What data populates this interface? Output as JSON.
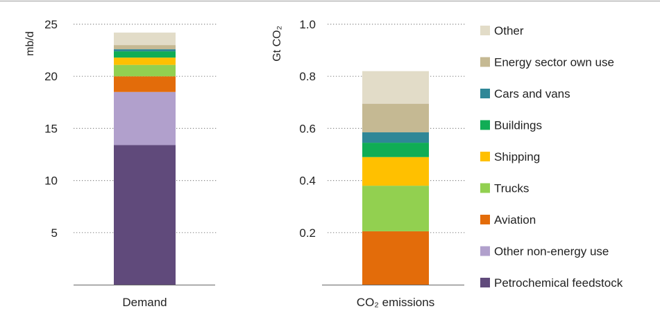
{
  "chart_data": [
    {
      "type": "bar",
      "stacked": true,
      "ylabel": "mb/d",
      "categories": [
        "Demand"
      ],
      "ylim": [
        0,
        25
      ],
      "yticks": [
        5,
        10,
        15,
        20,
        25
      ],
      "ytick_labels": [
        "5",
        "10",
        "15",
        "20",
        "25"
      ],
      "grid": "dotted-horizontal",
      "series": [
        {
          "name": "Petrochemical feedstock",
          "values": [
            13.4
          ]
        },
        {
          "name": "Other non-energy use",
          "values": [
            5.1
          ]
        },
        {
          "name": "Aviation",
          "values": [
            1.5
          ]
        },
        {
          "name": "Trucks",
          "values": [
            1.1
          ]
        },
        {
          "name": "Shipping",
          "values": [
            0.7
          ]
        },
        {
          "name": "Buildings",
          "values": [
            0.6
          ]
        },
        {
          "name": "Cars and vans",
          "values": [
            0.2
          ]
        },
        {
          "name": "Energy sector own use",
          "values": [
            0.4
          ]
        },
        {
          "name": "Other",
          "values": [
            1.2
          ]
        }
      ]
    },
    {
      "type": "bar",
      "stacked": true,
      "ylabel": "Gt CO₂",
      "categories": [
        "CO₂ emissions"
      ],
      "ylim": [
        0,
        1.0
      ],
      "yticks": [
        0.2,
        0.4,
        0.6,
        0.8,
        1.0
      ],
      "ytick_labels": [
        "0.2",
        "0.4",
        "0.6",
        "0.8",
        "1.0"
      ],
      "grid": "dotted-horizontal",
      "series": [
        {
          "name": "Petrochemical feedstock",
          "values": [
            0
          ]
        },
        {
          "name": "Other non-energy use",
          "values": [
            0
          ]
        },
        {
          "name": "Aviation",
          "values": [
            0.205
          ]
        },
        {
          "name": "Trucks",
          "values": [
            0.175
          ]
        },
        {
          "name": "Shipping",
          "values": [
            0.11
          ]
        },
        {
          "name": "Buildings",
          "values": [
            0.055
          ]
        },
        {
          "name": "Cars and vans",
          "values": [
            0.04
          ]
        },
        {
          "name": "Energy sector own use",
          "values": [
            0.11
          ]
        },
        {
          "name": "Other",
          "values": [
            0.125
          ]
        }
      ]
    }
  ],
  "legend": {
    "placement": "right",
    "items": [
      {
        "name": "Other",
        "color": "#e2dcc8"
      },
      {
        "name": "Energy sector own use",
        "color": "#c5b993"
      },
      {
        "name": "Cars and vans",
        "color": "#2f8797"
      },
      {
        "name": "Buildings",
        "color": "#10ad55"
      },
      {
        "name": "Shipping",
        "color": "#ffc000"
      },
      {
        "name": "Trucks",
        "color": "#92d050"
      },
      {
        "name": "Aviation",
        "color": "#e36c0a"
      },
      {
        "name": "Other non-energy use",
        "color": "#b1a0cc"
      },
      {
        "name": "Petrochemical feedstock",
        "color": "#604a7b"
      }
    ]
  },
  "colors": {
    "Petrochemical feedstock": "#604a7b",
    "Other non-energy use": "#b1a0cc",
    "Aviation": "#e36c0a",
    "Trucks": "#92d050",
    "Shipping": "#ffc000",
    "Buildings": "#10ad55",
    "Cars and vans": "#2f8797",
    "Energy sector own use": "#c5b993",
    "Other": "#e2dcc8"
  }
}
